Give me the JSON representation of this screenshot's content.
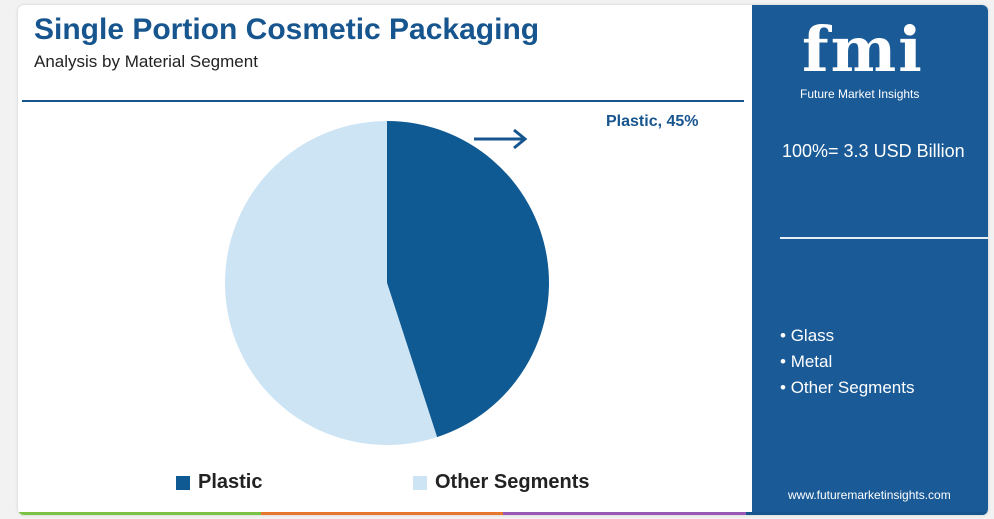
{
  "header": {
    "title": "Single Portion Cosmetic Packaging",
    "subtitle": "Analysis by Material Segment"
  },
  "chart_data": {
    "type": "pie",
    "title": "Single Portion Cosmetic Packaging",
    "subtitle": "Analysis by Material Segment",
    "slices": [
      {
        "label": "Plastic",
        "value": 45,
        "color": "#0f5a93"
      },
      {
        "label": "Other Segments",
        "value": 55,
        "color": "#cde4f5"
      }
    ],
    "annotation": "Plastic, 45%",
    "legend_position": "bottom"
  },
  "side_panel": {
    "logo_text": "fmi",
    "logo_tagline": "Future Market Insights",
    "total_label": "100%= 3.3 USD Billion",
    "other_segments": [
      "Glass",
      "Metal",
      "Other Segments"
    ],
    "website": "www.futuremarketinsights.com"
  },
  "colors": {
    "brand": "#17558f",
    "panel": "#1a5a97",
    "plastic": "#0f5a93",
    "other": "#cde4f5",
    "bottom_bar": [
      "#7bc143",
      "#e8772e",
      "#9b59b6",
      "#17558f"
    ]
  },
  "icons": [
    "arrow-right-icon"
  ]
}
